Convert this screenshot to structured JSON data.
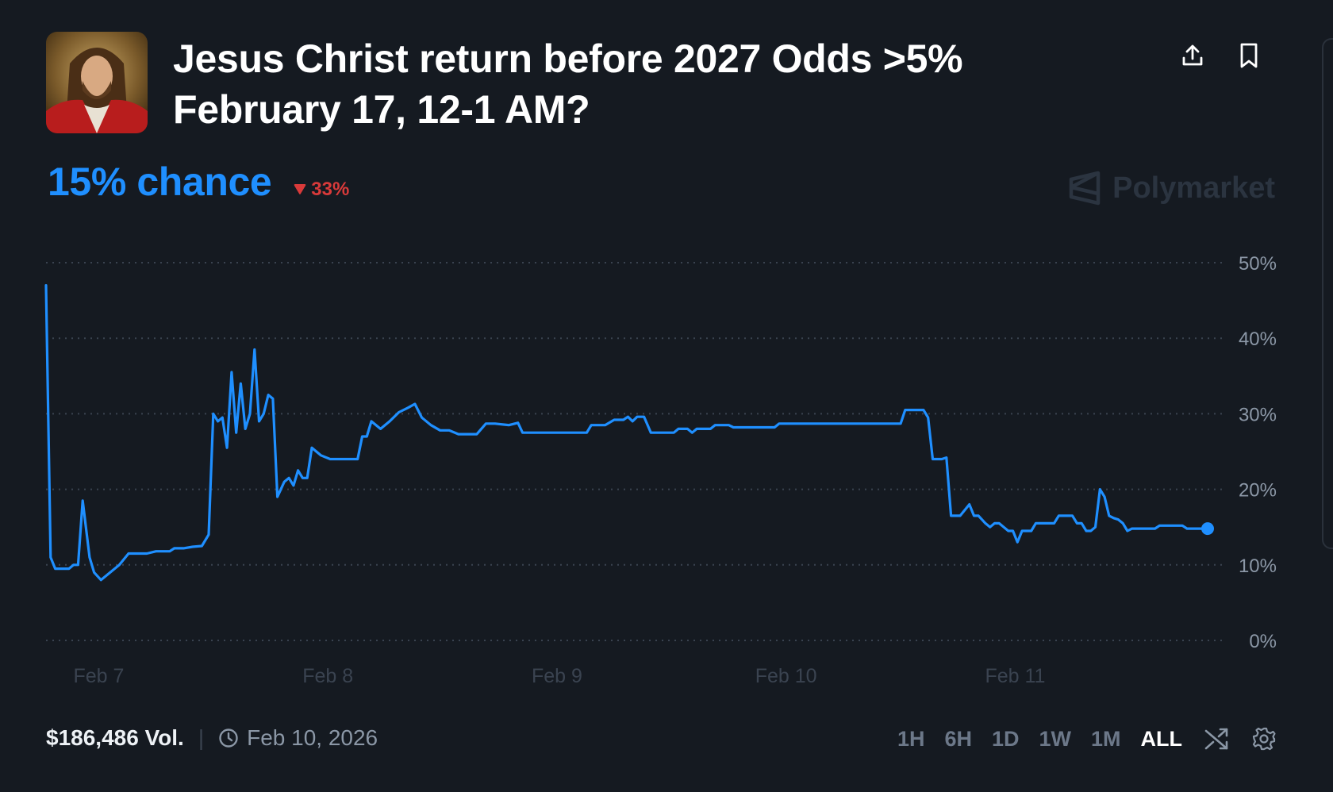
{
  "market": {
    "title_line1": "Jesus Christ return before 2027 Odds >5%",
    "title_line2": "February 17, 12-1 AM?",
    "image_icon": "portrait-image"
  },
  "header_actions": {
    "share_icon": "share-icon",
    "bookmark_icon": "bookmark-icon"
  },
  "odds": {
    "chance_label": "15% chance",
    "change_label": "33%",
    "change_direction": "down",
    "chance_color": "#1f8fff",
    "down_color": "#d93a3a"
  },
  "brand": {
    "name": "Polymarket"
  },
  "footer": {
    "volume_label": "$186,486 Vol.",
    "end_date": "Feb 10, 2026",
    "ranges": [
      "1H",
      "6H",
      "1D",
      "1W",
      "1M",
      "ALL"
    ],
    "active_range": "ALL"
  },
  "chart_data": {
    "type": "line",
    "ylim": [
      0,
      50
    ],
    "y_ticks": [
      "50%",
      "40%",
      "30%",
      "20%",
      "10%",
      "0%"
    ],
    "x_ticks": [
      {
        "label": "Feb 7",
        "x": 0.45
      },
      {
        "label": "Feb 8",
        "x": 1.45
      },
      {
        "label": "Feb 9",
        "x": 2.45
      },
      {
        "label": "Feb 10",
        "x": 3.45
      },
      {
        "label": "Feb 11",
        "x": 4.45
      }
    ],
    "grid": true,
    "line_color": "#1f8fff",
    "series": [
      {
        "values": [
          [
            0.22,
            47
          ],
          [
            0.24,
            11
          ],
          [
            0.26,
            9.5
          ],
          [
            0.32,
            9.5
          ],
          [
            0.34,
            10
          ],
          [
            0.36,
            10
          ],
          [
            0.38,
            18.5
          ],
          [
            0.41,
            11
          ],
          [
            0.43,
            9
          ],
          [
            0.46,
            8
          ],
          [
            0.5,
            9
          ],
          [
            0.54,
            10
          ],
          [
            0.58,
            11.5
          ],
          [
            0.66,
            11.5
          ],
          [
            0.7,
            11.8
          ],
          [
            0.76,
            11.8
          ],
          [
            0.78,
            12.2
          ],
          [
            0.82,
            12.2
          ],
          [
            0.86,
            12.4
          ],
          [
            0.9,
            12.5
          ],
          [
            0.93,
            14
          ],
          [
            0.95,
            30
          ],
          [
            0.97,
            29
          ],
          [
            0.99,
            29.5
          ],
          [
            1.01,
            25.5
          ],
          [
            1.03,
            35.5
          ],
          [
            1.05,
            27.5
          ],
          [
            1.07,
            34
          ],
          [
            1.09,
            28
          ],
          [
            1.11,
            30
          ],
          [
            1.13,
            38.5
          ],
          [
            1.15,
            29
          ],
          [
            1.17,
            30
          ],
          [
            1.19,
            32.5
          ],
          [
            1.21,
            32
          ],
          [
            1.23,
            19
          ],
          [
            1.26,
            21
          ],
          [
            1.28,
            21.5
          ],
          [
            1.3,
            20.5
          ],
          [
            1.32,
            22.5
          ],
          [
            1.34,
            21.5
          ],
          [
            1.36,
            21.5
          ],
          [
            1.38,
            25.5
          ],
          [
            1.4,
            25
          ],
          [
            1.42,
            24.5
          ],
          [
            1.46,
            24
          ],
          [
            1.52,
            24
          ],
          [
            1.58,
            24
          ],
          [
            1.6,
            27
          ],
          [
            1.62,
            27
          ],
          [
            1.64,
            29
          ],
          [
            1.68,
            28
          ],
          [
            1.72,
            29
          ],
          [
            1.76,
            30.2
          ],
          [
            1.8,
            30.8
          ],
          [
            1.83,
            31.3
          ],
          [
            1.86,
            29.5
          ],
          [
            1.9,
            28.5
          ],
          [
            1.94,
            27.8
          ],
          [
            1.98,
            27.8
          ],
          [
            2.02,
            27.3
          ],
          [
            2.06,
            27.3
          ],
          [
            2.1,
            27.3
          ],
          [
            2.14,
            28.7
          ],
          [
            2.18,
            28.7
          ],
          [
            2.24,
            28.5
          ],
          [
            2.28,
            28.8
          ],
          [
            2.3,
            27.5
          ],
          [
            2.4,
            27.5
          ],
          [
            2.5,
            27.5
          ],
          [
            2.58,
            27.5
          ],
          [
            2.6,
            28.5
          ],
          [
            2.66,
            28.5
          ],
          [
            2.7,
            29.2
          ],
          [
            2.74,
            29.2
          ],
          [
            2.76,
            29.6
          ],
          [
            2.78,
            29
          ],
          [
            2.8,
            29.6
          ],
          [
            2.83,
            29.6
          ],
          [
            2.86,
            27.5
          ],
          [
            2.96,
            27.5
          ],
          [
            2.98,
            28
          ],
          [
            3.02,
            28
          ],
          [
            3.04,
            27.5
          ],
          [
            3.06,
            28
          ],
          [
            3.12,
            28
          ],
          [
            3.14,
            28.5
          ],
          [
            3.2,
            28.5
          ],
          [
            3.22,
            28.2
          ],
          [
            3.4,
            28.2
          ],
          [
            3.42,
            28.7
          ],
          [
            3.6,
            28.7
          ],
          [
            3.8,
            28.7
          ],
          [
            3.95,
            28.7
          ],
          [
            3.97,
            30.5
          ],
          [
            4.05,
            30.5
          ],
          [
            4.07,
            29.5
          ],
          [
            4.09,
            24
          ],
          [
            4.13,
            24
          ],
          [
            4.15,
            24.2
          ],
          [
            4.17,
            16.5
          ],
          [
            4.21,
            16.5
          ],
          [
            4.25,
            18
          ],
          [
            4.27,
            16.5
          ],
          [
            4.29,
            16.5
          ],
          [
            4.32,
            15.5
          ],
          [
            4.34,
            15
          ],
          [
            4.36,
            15.5
          ],
          [
            4.38,
            15.5
          ],
          [
            4.4,
            15
          ],
          [
            4.42,
            14.5
          ],
          [
            4.44,
            14.5
          ],
          [
            4.46,
            13
          ],
          [
            4.48,
            14.5
          ],
          [
            4.52,
            14.5
          ],
          [
            4.54,
            15.5
          ],
          [
            4.62,
            15.5
          ],
          [
            4.64,
            16.5
          ],
          [
            4.7,
            16.5
          ],
          [
            4.72,
            15.5
          ],
          [
            4.74,
            15.5
          ],
          [
            4.76,
            14.5
          ],
          [
            4.78,
            14.5
          ],
          [
            4.8,
            15
          ],
          [
            4.82,
            20
          ],
          [
            4.84,
            19
          ],
          [
            4.86,
            16.5
          ],
          [
            4.88,
            16.2
          ],
          [
            4.9,
            16
          ],
          [
            4.92,
            15.5
          ],
          [
            4.94,
            14.5
          ],
          [
            4.96,
            14.8
          ],
          [
            4.98,
            14.8
          ],
          [
            5.02,
            14.8
          ],
          [
            5.06,
            14.8
          ],
          [
            5.08,
            15.2
          ],
          [
            5.1,
            15.2
          ],
          [
            5.14,
            15.2
          ],
          [
            5.18,
            15.2
          ],
          [
            5.2,
            14.8
          ],
          [
            5.24,
            14.8
          ],
          [
            5.27,
            14.8
          ],
          [
            5.29,
            14.8
          ]
        ]
      }
    ]
  }
}
